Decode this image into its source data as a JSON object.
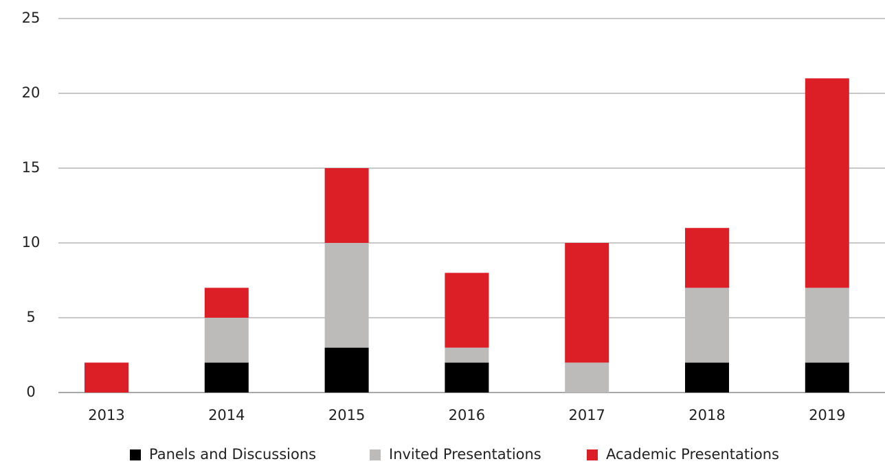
{
  "chart_data": {
    "type": "stacked_bar",
    "categories": [
      "2013",
      "2014",
      "2015",
      "2016",
      "2017",
      "2018",
      "2019"
    ],
    "series": [
      {
        "name": "Panels and Discussions",
        "color": "#000000",
        "values": [
          0,
          2,
          3,
          2,
          0,
          2,
          2
        ]
      },
      {
        "name": "Invited Presentations",
        "color": "#bdbbb9",
        "values": [
          0,
          3,
          7,
          1,
          2,
          5,
          5
        ]
      },
      {
        "name": "Academic Presentations",
        "color": "#dc1f26",
        "values": [
          2,
          2,
          5,
          5,
          8,
          4,
          14
        ]
      }
    ],
    "ylim": [
      0,
      25
    ],
    "yticks": [
      0,
      5,
      10,
      15,
      20,
      25
    ],
    "grid": true,
    "legend": "bottom"
  }
}
